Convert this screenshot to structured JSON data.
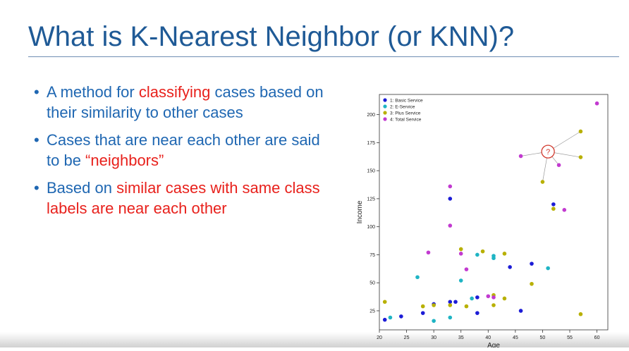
{
  "slide": {
    "title": "What is K-Nearest Neighbor (or KNN)?",
    "bullets": [
      {
        "parts": [
          {
            "text": "A method for ",
            "style": "blue"
          },
          {
            "text": "classifying",
            "style": "red"
          },
          {
            "text": " cases based on their similarity to other cases",
            "style": "blue"
          }
        ]
      },
      {
        "parts": [
          {
            "text": "Cases that are near each other are said to be ",
            "style": "blue"
          },
          {
            "text": "“neighbors”",
            "style": "red"
          }
        ]
      },
      {
        "parts": [
          {
            "text": "Based on ",
            "style": "blue"
          },
          {
            "text": "similar cases with same class labels are near each other",
            "style": "red"
          }
        ]
      }
    ]
  },
  "colors": {
    "title": "#1f5a96",
    "text": "#1f67b2",
    "highlight": "#e8211c",
    "class1": "#1c1cd6",
    "class2": "#1fb4c4",
    "class3": "#b8b000",
    "class4": "#c23ad0"
  },
  "chart_data": {
    "type": "scatter",
    "title": "",
    "xlabel": "Age",
    "ylabel": "Income",
    "xlim": [
      20,
      62
    ],
    "ylim": [
      8,
      218
    ],
    "xticks": [
      20,
      25,
      30,
      35,
      40,
      45,
      50,
      55,
      60
    ],
    "yticks": [
      25,
      50,
      75,
      100,
      125,
      150,
      175,
      200
    ],
    "legend_position": "top-left",
    "grid": false,
    "series": [
      {
        "name": "1: Basic Service",
        "color": "#1c1cd6",
        "points": [
          [
            21,
            17
          ],
          [
            24,
            20
          ],
          [
            28,
            23
          ],
          [
            30,
            31
          ],
          [
            33,
            33
          ],
          [
            34,
            33
          ],
          [
            33,
            125
          ],
          [
            38,
            23
          ],
          [
            38,
            37
          ],
          [
            44,
            64
          ],
          [
            46,
            25
          ],
          [
            48,
            67
          ],
          [
            52,
            120
          ]
        ]
      },
      {
        "name": "2: E-Service",
        "color": "#1fb4c4",
        "points": [
          [
            22,
            19
          ],
          [
            27,
            55
          ],
          [
            30,
            16
          ],
          [
            33,
            19
          ],
          [
            35,
            52
          ],
          [
            37,
            36
          ],
          [
            38,
            75
          ],
          [
            41,
            74
          ],
          [
            41,
            72
          ],
          [
            51,
            63
          ]
        ]
      },
      {
        "name": "3: Plus Service",
        "color": "#b8b000",
        "points": [
          [
            21,
            33
          ],
          [
            28,
            29
          ],
          [
            30,
            30
          ],
          [
            33,
            30
          ],
          [
            35,
            80
          ],
          [
            36,
            29
          ],
          [
            39,
            78
          ],
          [
            41,
            39
          ],
          [
            41,
            30
          ],
          [
            43,
            76
          ],
          [
            43,
            36
          ],
          [
            48,
            49
          ],
          [
            50,
            140
          ],
          [
            52,
            116
          ],
          [
            57,
            185
          ],
          [
            57,
            162
          ],
          [
            57,
            22
          ]
        ]
      },
      {
        "name": "4: Total Service",
        "color": "#c23ad0",
        "points": [
          [
            29,
            77
          ],
          [
            33,
            136
          ],
          [
            33,
            101
          ],
          [
            35,
            76
          ],
          [
            36,
            62
          ],
          [
            40,
            38
          ],
          [
            41,
            37
          ],
          [
            46,
            163
          ],
          [
            53,
            155
          ],
          [
            54,
            115
          ],
          [
            60,
            210
          ]
        ]
      }
    ],
    "query_point": {
      "label": "?",
      "x": 51,
      "y": 167,
      "neighbors": [
        [
          46,
          163
        ],
        [
          57,
          185
        ],
        [
          57,
          162
        ],
        [
          53,
          155
        ],
        [
          50,
          140
        ]
      ]
    }
  }
}
